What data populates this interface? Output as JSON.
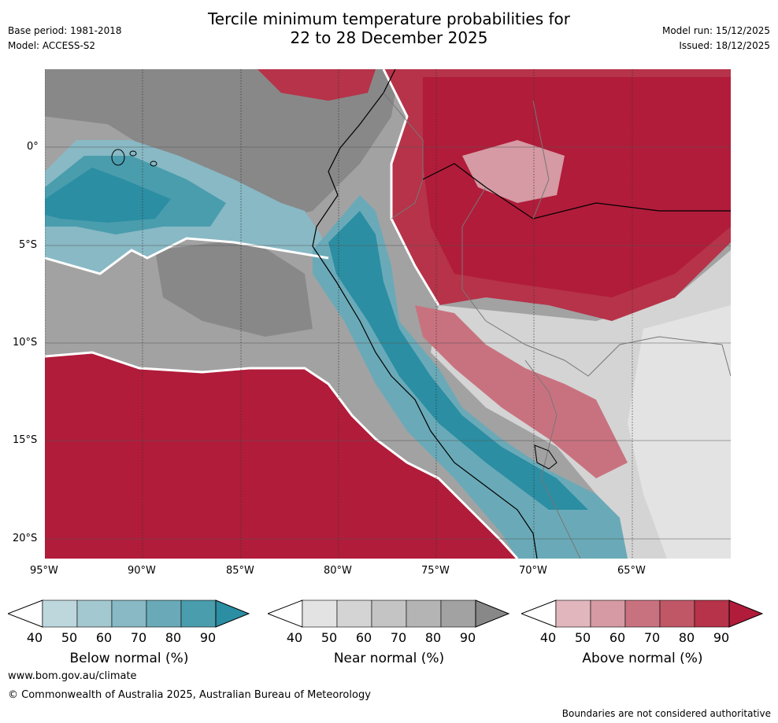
{
  "header": {
    "base_period": "Base period: 1981-2018",
    "model": "Model: ACCESS-S2",
    "title_line1": "Tercile minimum temperature probabilities for",
    "title_line2": "22 to 28 December 2025",
    "model_run": "Model run: 15/12/2025",
    "issued": "Issued: 18/12/2025"
  },
  "axes": {
    "lat_labels": [
      "0°",
      "5°S",
      "10°S",
      "15°S",
      "20°S"
    ],
    "lon_labels": [
      "95°W",
      "90°W",
      "85°W",
      "80°W",
      "75°W",
      "70°W",
      "65°W"
    ]
  },
  "colorbars": [
    {
      "label": "Below normal (%)",
      "ticks": [
        "40",
        "50",
        "60",
        "70",
        "80",
        "90"
      ],
      "colors": [
        "#ffffff",
        "#bdd7dd",
        "#a4c8d0",
        "#88b9c5",
        "#6aaab8",
        "#4a9dad",
        "#2b8ea3"
      ]
    },
    {
      "label": "Near normal (%)",
      "ticks": [
        "40",
        "50",
        "60",
        "70",
        "80",
        "90"
      ],
      "colors": [
        "#ffffff",
        "#e3e3e3",
        "#d4d4d4",
        "#c4c4c4",
        "#b4b4b4",
        "#a2a2a2",
        "#888888"
      ]
    },
    {
      "label": "Above normal (%)",
      "ticks": [
        "40",
        "50",
        "60",
        "70",
        "80",
        "90"
      ],
      "colors": [
        "#ffffff",
        "#e2b6bd",
        "#d59aa3",
        "#c9727f",
        "#c05766",
        "#b63349",
        "#b11c3a"
      ]
    }
  ],
  "footer": {
    "url": "www.bom.gov.au/climate",
    "copyright": "© Commonwealth of Australia 2025, Australian Bureau of Meteorology",
    "disclaimer": "Boundaries are not considered authoritative"
  }
}
